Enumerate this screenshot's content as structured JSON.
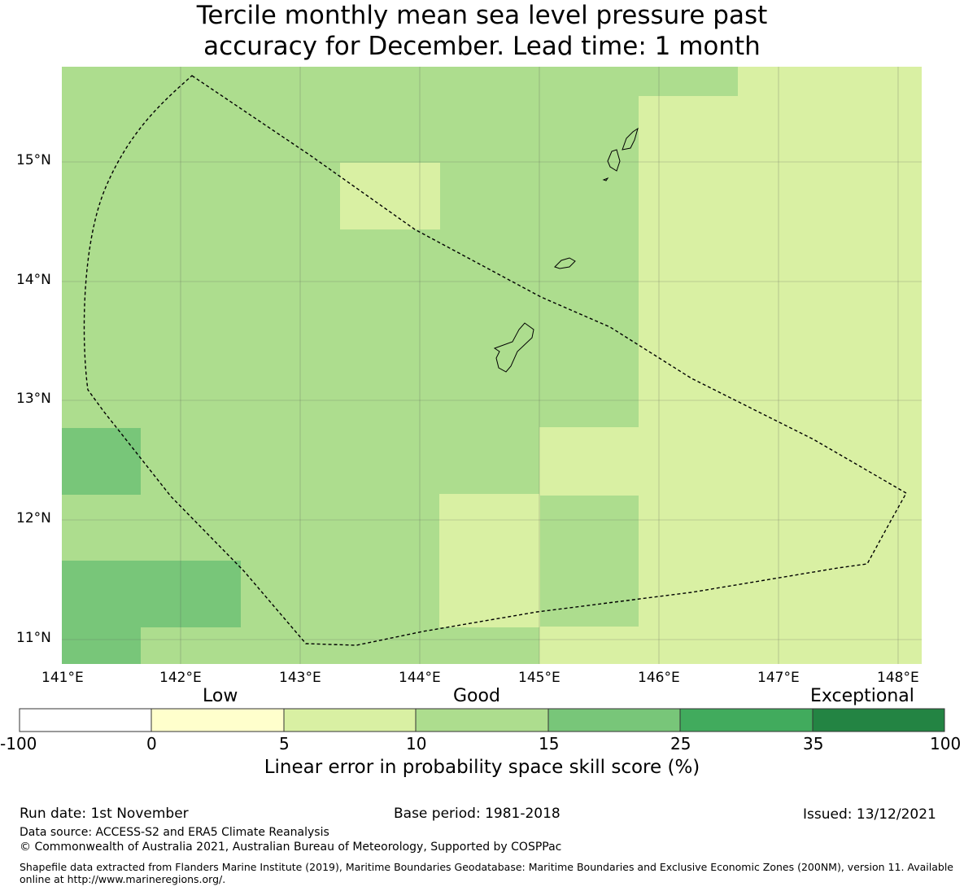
{
  "title": {
    "line1": "Tercile monthly mean sea level pressure past",
    "line2": "accuracy for December. Lead time: 1 month"
  },
  "map": {
    "x_axis_labels": [
      "141°E",
      "142°E",
      "143°E",
      "144°E",
      "145°E",
      "146°E",
      "147°E",
      "148°E"
    ],
    "y_axis_labels": [
      "15°N",
      "14°N",
      "13°N",
      "12°N",
      "11°N"
    ],
    "colors": {
      "bin_5_10": "#d9f0a3",
      "bin_10_15": "#addd8e",
      "bin_15_25": "#78c679",
      "eez_outline": "#000000",
      "gridline": "#555555"
    }
  },
  "colorbar": {
    "categories": [
      "Low",
      "Good",
      "Exceptional"
    ],
    "ticks": [
      "-100",
      "0",
      "5",
      "10",
      "15",
      "25",
      "35",
      "100"
    ],
    "bins": [
      {
        "from": -100,
        "to": 0,
        "color": "#ffffff"
      },
      {
        "from": 0,
        "to": 5,
        "color": "#ffffcc"
      },
      {
        "from": 5,
        "to": 10,
        "color": "#d9f0a3"
      },
      {
        "from": 10,
        "to": 15,
        "color": "#addd8e"
      },
      {
        "from": 15,
        "to": 25,
        "color": "#78c679"
      },
      {
        "from": 25,
        "to": 35,
        "color": "#41ab5d"
      },
      {
        "from": 35,
        "to": 100,
        "color": "#238443"
      }
    ],
    "label": "Linear error in probability space skill score (%)"
  },
  "footer": {
    "run_date": "Run date: 1st November",
    "base_period": "Base period: 1981-2018",
    "issued": "Issued: 13/12/2021",
    "data_source": "Data source: ACCESS-S2 and ERA5 Climate Reanalysis",
    "copyright": "© Commonwealth of Australia 2021, Australian Bureau of Meteorology, Supported by COSPPac",
    "shapefile": "Shapefile data extracted from Flanders Marine Institute (2019), Maritime Boundaries Geodatabase: Maritime Boundaries and Exclusive Economic Zones (200NM), version 11. Available online at http://www.marineregions.org/."
  }
}
